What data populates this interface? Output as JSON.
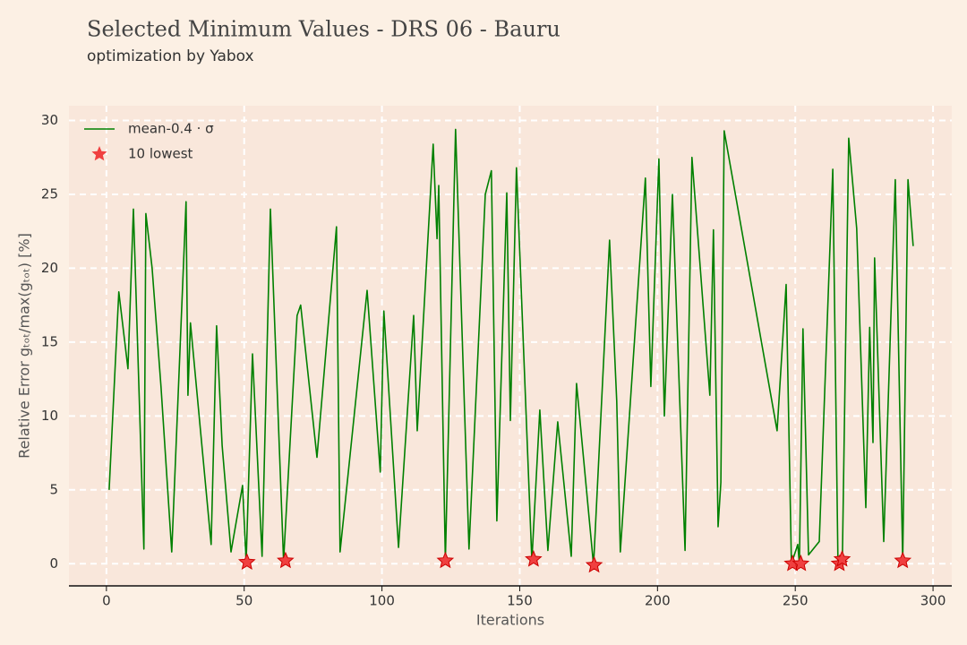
{
  "chart_data": {
    "type": "line",
    "title": "Selected Minimum Values - DRS 06 - Bauru",
    "subtitle": "optimization by Yabox",
    "x_label": "Iterations",
    "y_label": "Relative Error gₜₒₜ/max(gₜₒₜ) [%]",
    "xlim": [
      -13.6,
      306.8
    ],
    "ylim": [
      -1.5,
      31
    ],
    "xticks": [
      0,
      50,
      100,
      150,
      200,
      250,
      300
    ],
    "yticks": [
      0,
      5,
      10,
      15,
      20,
      25,
      30
    ],
    "grid": true,
    "legend": "upper left",
    "series": [
      {
        "name": "mean-0.4 · σ",
        "color": "#008000",
        "marker": "none",
        "x": [
          1,
          4.5,
          7.8,
          9.8,
          13.6,
          14.3,
          16.6,
          19.8,
          23.7,
          28.9,
          29.6,
          30.5,
          38,
          40,
          42,
          45.2,
          49.4,
          50.7,
          53,
          56.5,
          59.5,
          64.3,
          69.2,
          70.5,
          76.4,
          83.5,
          84.8,
          94.6,
          99.4,
          100.7,
          106,
          111.5,
          112.8,
          118.6,
          120,
          120.6,
          123,
          126.7,
          131.6,
          137.5,
          139.7,
          141.7,
          145.3,
          146.6,
          148.8,
          154.4,
          157.3,
          160.2,
          163.8,
          168.7,
          170.6,
          176.8,
          182.6,
          185.2,
          186.5,
          195.6,
          197.6,
          200.5,
          202.5,
          205.4,
          210,
          212.5,
          219,
          220.3,
          222,
          223,
          224.2,
          243.4,
          246.7,
          248.6,
          250.9,
          251.5,
          252.8,
          254.8,
          258.7,
          263.6,
          265.5,
          267.1,
          269.4,
          272.3,
          275.6,
          277,
          278.2,
          278.8,
          282.1,
          286.3,
          289,
          290.9,
          292.8
        ],
        "values": [
          5,
          18.4,
          13.2,
          24,
          1,
          23.7,
          20,
          12,
          0.8,
          24.5,
          11.4,
          16.3,
          1.3,
          16.1,
          8,
          0.8,
          5.3,
          0.1,
          14.2,
          0.5,
          24,
          0.2,
          16.8,
          17.5,
          7.2,
          22.8,
          0.8,
          18.5,
          6.2,
          17.1,
          1.1,
          16.8,
          9,
          28.4,
          22,
          25.6,
          0.2,
          29.4,
          1,
          25,
          26.6,
          2.9,
          25.1,
          9.7,
          26.8,
          0.2,
          10.4,
          0.9,
          9.6,
          0.5,
          12.2,
          -0.1,
          21.9,
          11,
          0.8,
          26.1,
          12,
          27.4,
          10,
          25,
          0.9,
          27.5,
          11.4,
          22.6,
          2.5,
          5.5,
          29.3,
          9,
          18.9,
          0,
          1.3,
          0,
          15.9,
          0.6,
          1.5,
          26.7,
          0,
          0.3,
          28.8,
          22.7,
          3.8,
          16,
          8.2,
          20.7,
          1.5,
          26,
          0.2,
          26,
          21.5
        ]
      },
      {
        "name": "10 lowest",
        "color": "#f04040",
        "marker": "star",
        "x": [
          51,
          65,
          123,
          155,
          177,
          249,
          252,
          266,
          267,
          289
        ],
        "values": [
          0.1,
          0.2,
          0.2,
          0.3,
          -0.1,
          0,
          0,
          0,
          0.3,
          0.2
        ]
      }
    ]
  }
}
